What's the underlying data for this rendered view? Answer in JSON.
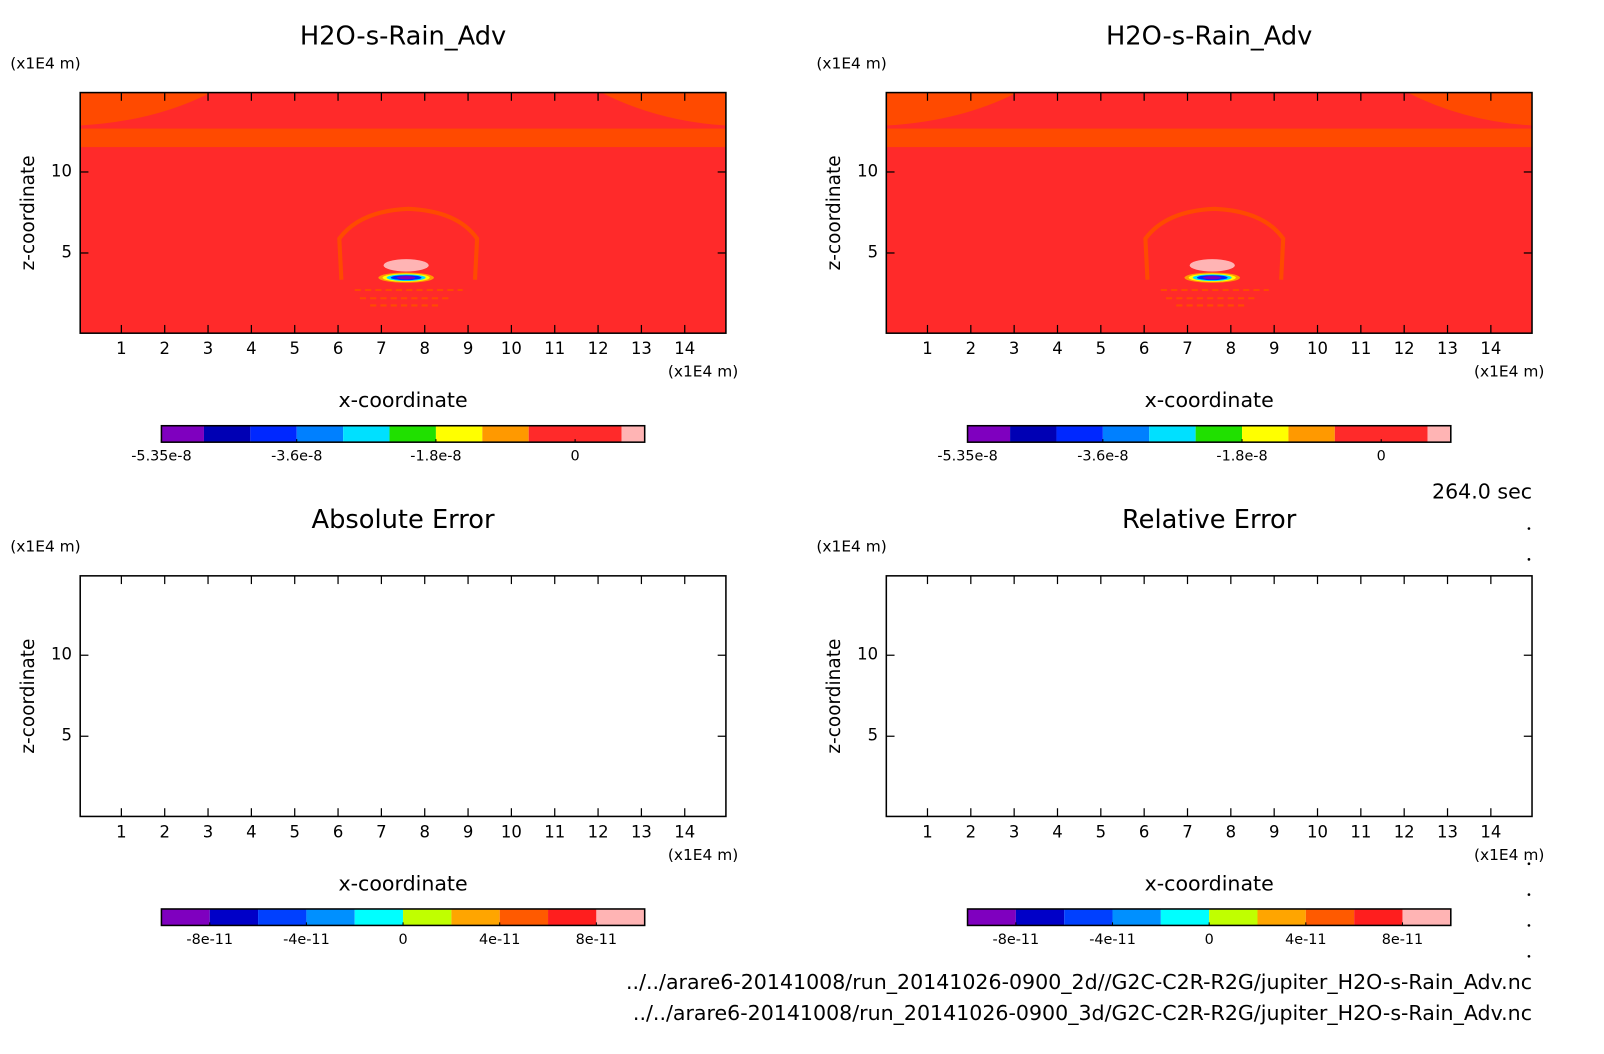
{
  "chart_data": [
    {
      "type": "contour",
      "title": "H2O-s-Rain_Adv",
      "xlabel": "x-coordinate",
      "ylabel": "z-coordinate",
      "x_unit": "(x1E4 m)",
      "y_unit": "(x1E4 m)",
      "xlim": [
        0.05,
        14.95
      ],
      "ylim": [
        0.05,
        14.9
      ],
      "xticks": [
        1,
        2,
        3,
        4,
        5,
        6,
        7,
        8,
        9,
        10,
        11,
        12,
        13,
        14
      ],
      "yticks": [
        5,
        10
      ],
      "colorbar": {
        "levels": [
          -5.35e-08,
          -4.8e-08,
          -4.2e-08,
          -3.6e-08,
          -3e-08,
          -2.4e-08,
          -1.8e-08,
          -1.2e-08,
          -6e-09,
          6e-09,
          9e-09
        ],
        "colors": [
          "#7f00bf",
          "#0000b4",
          "#0028ff",
          "#0080ff",
          "#00e0ff",
          "#20e000",
          "#ffff00",
          "#ff9900",
          "#ff2a2a",
          "#ffb4b4"
        ],
        "ticks": [
          -5.35e-08,
          -3.6e-08,
          -1.8e-08,
          0
        ]
      }
    },
    {
      "type": "contour",
      "title": "H2O-s-Rain_Adv",
      "xlabel": "x-coordinate",
      "ylabel": "z-coordinate",
      "x_unit": "(x1E4 m)",
      "y_unit": "(x1E4 m)",
      "xlim": [
        0.05,
        14.95
      ],
      "ylim": [
        0.05,
        14.9
      ],
      "xticks": [
        1,
        2,
        3,
        4,
        5,
        6,
        7,
        8,
        9,
        10,
        11,
        12,
        13,
        14
      ],
      "yticks": [
        5,
        10
      ],
      "colorbar": {
        "levels": [
          -5.35e-08,
          -4.8e-08,
          -4.2e-08,
          -3.6e-08,
          -3e-08,
          -2.4e-08,
          -1.8e-08,
          -1.2e-08,
          -6e-09,
          6e-09,
          9e-09
        ],
        "colors": [
          "#7f00bf",
          "#0000b4",
          "#0028ff",
          "#0080ff",
          "#00e0ff",
          "#20e000",
          "#ffff00",
          "#ff9900",
          "#ff2a2a",
          "#ffb4b4"
        ],
        "ticks": [
          -5.35e-08,
          -3.6e-08,
          -1.8e-08,
          0
        ]
      }
    },
    {
      "type": "contour",
      "title": "Absolute Error",
      "xlabel": "x-coordinate",
      "ylabel": "z-coordinate",
      "x_unit": "(x1E4 m)",
      "y_unit": "(x1E4 m)",
      "xlim": [
        0.05,
        14.95
      ],
      "ylim": [
        0.05,
        14.9
      ],
      "xticks": [
        1,
        2,
        3,
        4,
        5,
        6,
        7,
        8,
        9,
        10,
        11,
        12,
        13,
        14
      ],
      "yticks": [
        5,
        10
      ],
      "colorbar": {
        "levels": [
          -1e-10,
          -8e-11,
          -6e-11,
          -4e-11,
          -2e-11,
          0,
          2e-11,
          4e-11,
          6e-11,
          8e-11,
          1e-10
        ],
        "colors": [
          "#7f00bf",
          "#0000c8",
          "#0040ff",
          "#0090ff",
          "#00ffff",
          "#c0ff00",
          "#ffa500",
          "#ff5a00",
          "#ff1e1e",
          "#ffb4b4"
        ],
        "ticks": [
          -8e-11,
          -4e-11,
          0,
          4e-11,
          8e-11
        ]
      }
    },
    {
      "type": "contour",
      "title": "Relative Error",
      "xlabel": "x-coordinate",
      "ylabel": "z-coordinate",
      "x_unit": "(x1E4 m)",
      "y_unit": "(x1E4 m)",
      "xlim": [
        0.05,
        14.95
      ],
      "ylim": [
        0.05,
        14.9
      ],
      "xticks": [
        1,
        2,
        3,
        4,
        5,
        6,
        7,
        8,
        9,
        10,
        11,
        12,
        13,
        14
      ],
      "yticks": [
        5,
        10
      ],
      "colorbar": {
        "levels": [
          -1e-10,
          -8e-11,
          -6e-11,
          -4e-11,
          -2e-11,
          0,
          2e-11,
          4e-11,
          6e-11,
          8e-11,
          1e-10
        ],
        "colors": [
          "#7f00bf",
          "#0000c8",
          "#0040ff",
          "#0090ff",
          "#00ffff",
          "#c0ff00",
          "#ffa500",
          "#ff5a00",
          "#ff1e1e",
          "#ffb4b4"
        ],
        "ticks": [
          -8e-11,
          -4e-11,
          0,
          4e-11,
          8e-11
        ]
      }
    }
  ],
  "time_label": "264.0 sec",
  "files": [
    "../../arare6-20141008/run_20141026-0900_2d//G2C-C2R-R2G/jupiter_H2O-s-Rain_Adv.nc",
    "../../arare6-20141008/run_20141026-0900_3d/G2C-C2R-R2G/jupiter_H2O-s-Rain_Adv.nc"
  ]
}
